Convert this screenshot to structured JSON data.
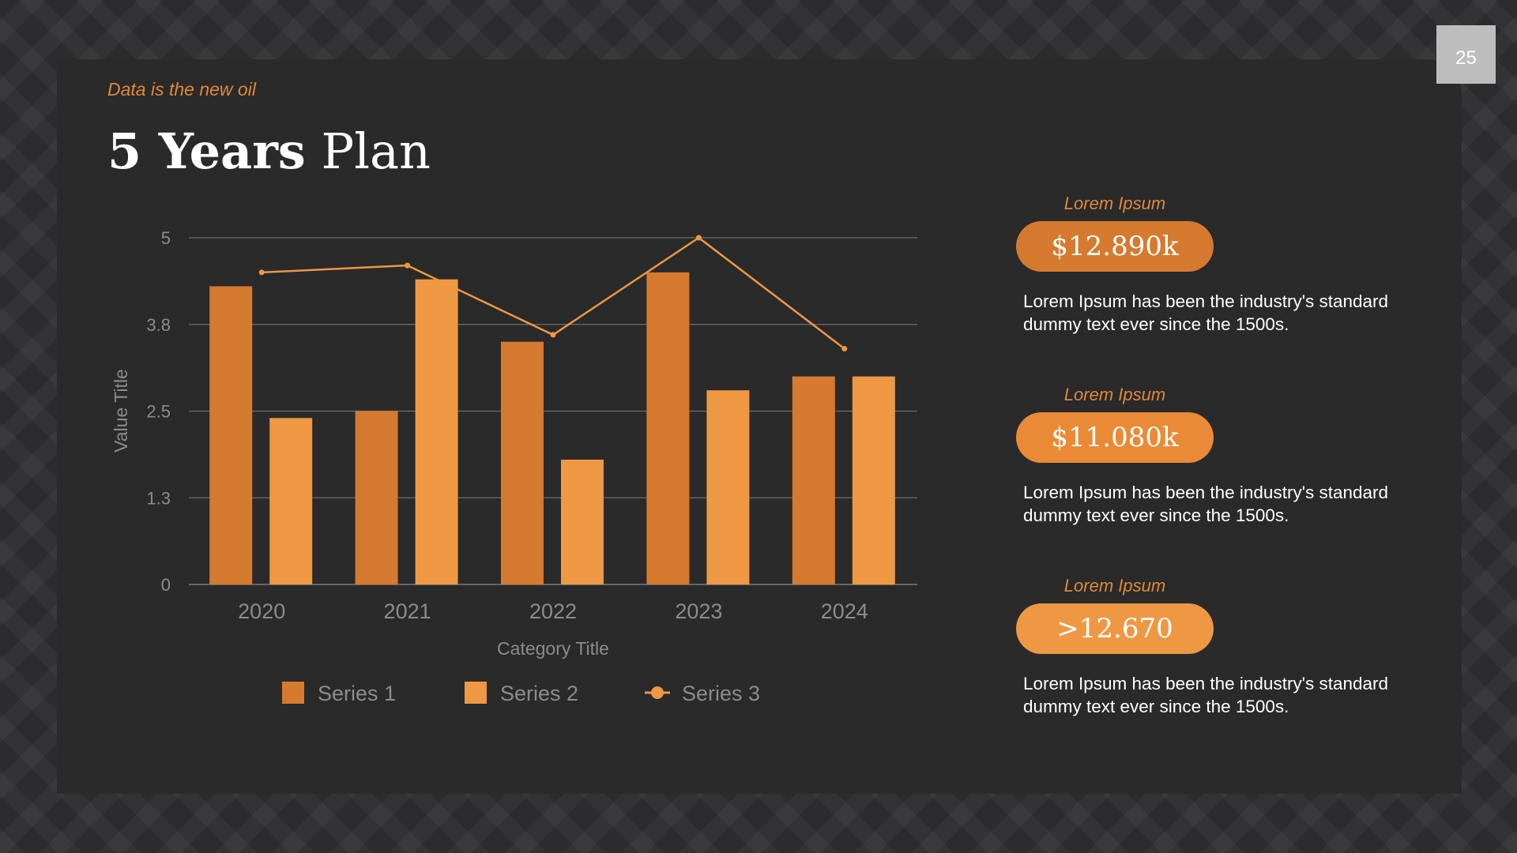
{
  "page_number": "25",
  "header": {
    "tagline": "Data is the new oil",
    "title_bold": "5 Years",
    "title_regular": "Plan"
  },
  "chart_data": {
    "type": "bar",
    "categories": [
      "2020",
      "2021",
      "2022",
      "2023",
      "2024"
    ],
    "series": [
      {
        "name": "Series 1",
        "type": "bar",
        "color": "#d57a2f",
        "values": [
          4.3,
          2.5,
          3.5,
          4.5,
          3.0
        ]
      },
      {
        "name": "Series 2",
        "type": "bar",
        "color": "#ee9843",
        "values": [
          2.4,
          4.4,
          1.8,
          2.8,
          3.0
        ]
      },
      {
        "name": "Series 3",
        "type": "line",
        "color": "#ee9843",
        "values": [
          4.5,
          4.6,
          3.6,
          5.0,
          3.4
        ]
      }
    ],
    "xlabel": "Category Title",
    "ylabel": "Value Title",
    "ylim": [
      0,
      5
    ],
    "yticks": [
      0,
      1.25,
      2.5,
      3.75,
      5
    ],
    "ytick_labels": [
      "0",
      "1.3",
      "2.5",
      "3.8",
      "5"
    ],
    "grid": true,
    "legend": "bottom"
  },
  "stats": [
    {
      "label": "Lorem Ipsum",
      "value": "$12.890k",
      "color": "#d57a2f",
      "text": "Lorem Ipsum has been the industry's standard dummy text ever since the 1500s."
    },
    {
      "label": "Lorem Ipsum",
      "value": "$11.080k",
      "color": "#ea8a37",
      "text": "Lorem Ipsum has been the industry's standard dummy text ever since the 1500s."
    },
    {
      "label": "Lorem Ipsum",
      "value": ">12.670",
      "color": "#ee9843",
      "text": "Lorem Ipsum has been the industry's standard dummy text ever since the 1500s."
    }
  ]
}
